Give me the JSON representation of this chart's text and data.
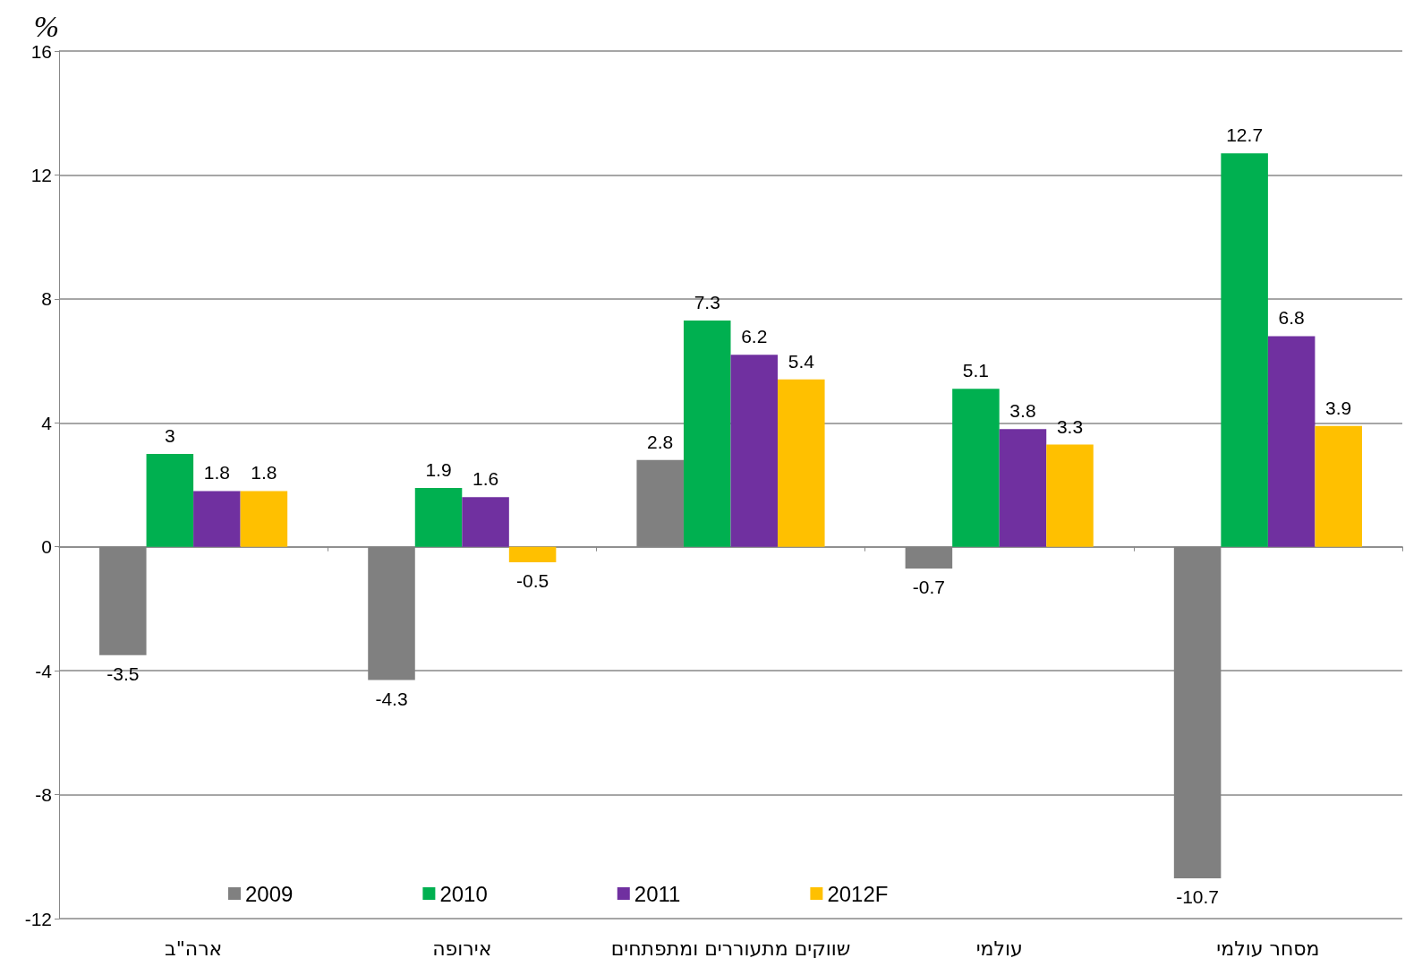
{
  "chart_data": {
    "type": "bar",
    "ylabel": "%",
    "categories": [
      "ארה\"ב",
      "אירופה",
      "שווקים מתעוררים ומתפתחים",
      "עולמי",
      "מסחר עולמי"
    ],
    "series": [
      {
        "name": "2009",
        "color": "#808080",
        "values": [
          -3.5,
          -4.3,
          2.8,
          -0.7,
          -10.7
        ]
      },
      {
        "name": "2010",
        "color": "#00b050",
        "values": [
          3,
          1.9,
          7.3,
          5.1,
          12.7
        ]
      },
      {
        "name": "2011",
        "color": "#7030a0",
        "values": [
          1.8,
          1.6,
          6.2,
          3.8,
          6.8
        ]
      },
      {
        "name": "2012F",
        "color": "#ffc000",
        "values": [
          1.8,
          -0.5,
          5.4,
          3.3,
          3.9
        ]
      }
    ],
    "ylim": [
      -12,
      16
    ],
    "yticks": [
      -12,
      -8,
      -4,
      0,
      4,
      8,
      12,
      16
    ],
    "grid": "y",
    "legend": "bottom",
    "data_labels": true
  }
}
